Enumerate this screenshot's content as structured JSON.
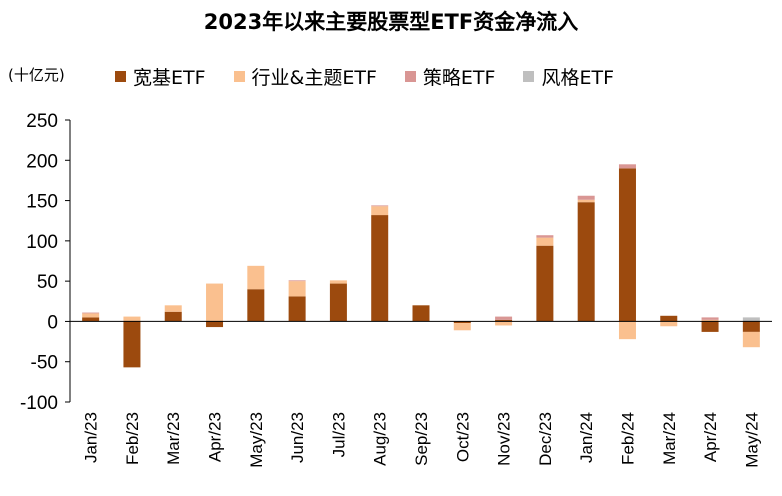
{
  "chart_data": {
    "type": "bar",
    "stacked": true,
    "title": "2023年以来主要股票型ETF资金净流入",
    "unit_label": "(十亿元)",
    "categories": [
      "Jan/23",
      "Feb/23",
      "Mar/23",
      "Apr/23",
      "May/23",
      "Jun/23",
      "Jul/23",
      "Aug/23",
      "Sep/23",
      "Oct/23",
      "Nov/23",
      "Dec/23",
      "Jan/24",
      "Feb/24",
      "Mar/24",
      "Apr/24",
      "May/24"
    ],
    "series": [
      {
        "name": "宽基ETF",
        "color": "#9C4A0E",
        "values": [
          5,
          -57,
          12,
          -7,
          40,
          31,
          47,
          132,
          20,
          -2,
          2,
          94,
          148,
          190,
          7,
          -13,
          -13
        ]
      },
      {
        "name": "行业&主题ETF",
        "color": "#FAC08F",
        "values": [
          5,
          6,
          8,
          47,
          29,
          19,
          4,
          11,
          0,
          -9,
          -5,
          10,
          3,
          -22,
          -6,
          2,
          -19
        ]
      },
      {
        "name": "策略ETF",
        "color": "#D99694",
        "values": [
          1,
          0,
          0,
          0,
          0,
          1,
          0,
          1,
          0,
          0,
          4,
          3,
          5,
          5,
          0,
          3,
          0
        ]
      },
      {
        "name": "风格ETF",
        "color": "#BFBFBF",
        "values": [
          0,
          0,
          0,
          0,
          0,
          0,
          0,
          0,
          0,
          0,
          0,
          0,
          0,
          0,
          0,
          0,
          5
        ]
      }
    ],
    "ylim": [
      -100,
      250
    ],
    "yticks": [
      250,
      200,
      150,
      100,
      50,
      0,
      -50,
      -100
    ],
    "grid": false,
    "legend": "top"
  }
}
